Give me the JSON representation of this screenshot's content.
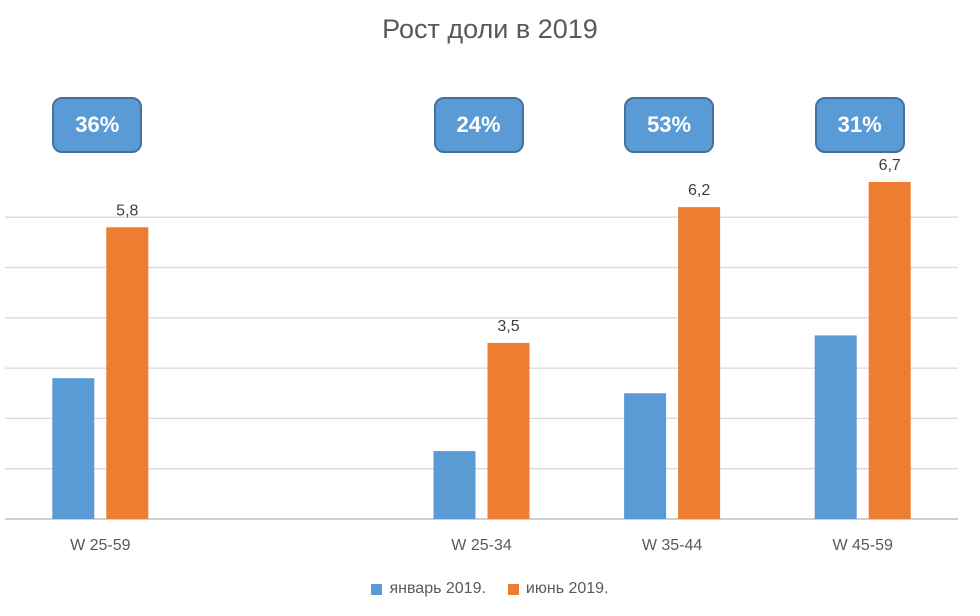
{
  "chart_data": {
    "type": "bar",
    "title": "Рост доли в 2019",
    "categories": [
      "W 25-59",
      "",
      "W 25-34",
      "W 35-44",
      "W 45-59"
    ],
    "series": [
      {
        "name": "январь 2019.",
        "color": "#5b9bd5",
        "values": [
          2.8,
          null,
          1.35,
          2.5,
          3.65
        ],
        "labels": [
          "",
          "",
          "",
          "",
          ""
        ]
      },
      {
        "name": "июнь 2019.",
        "color": "#ed7d31",
        "values": [
          5.8,
          null,
          3.5,
          6.2,
          6.7
        ],
        "labels": [
          "5,8",
          "",
          "3,5",
          "6,2",
          "6,7"
        ]
      }
    ],
    "callouts": [
      "36%",
      "",
      "24%",
      "53%",
      "31%"
    ],
    "ylim": [
      0,
      8
    ],
    "gridlines": true,
    "y_axis_labels_visible": false,
    "legend_position": "bottom",
    "grid_color": "#d9d9d9"
  }
}
